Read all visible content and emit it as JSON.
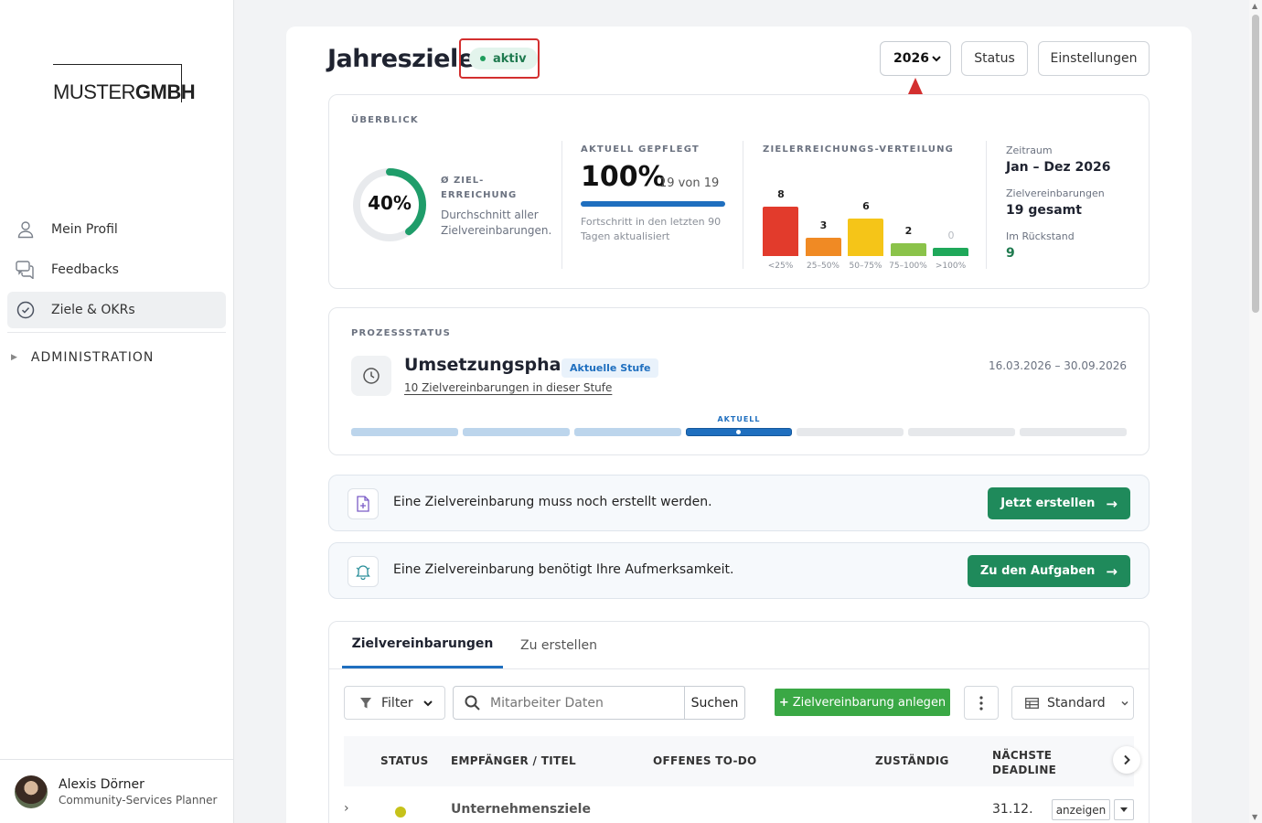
{
  "sidebar": {
    "logo": {
      "light": "MUSTER",
      "bold": "GMBH"
    },
    "items": [
      {
        "label": "Mein Profil",
        "icon": "person-icon"
      },
      {
        "label": "Feedbacks",
        "icon": "chat-icon"
      },
      {
        "label": "Ziele & OKRs",
        "icon": "check-circle-icon",
        "active": true
      }
    ],
    "admin_label": "ADMINISTRATION",
    "user": {
      "name": "Alexis Dörner",
      "role": "Community-Services Planner"
    }
  },
  "header": {
    "title": "Jahresziele",
    "status_badge": "aktiv",
    "year": "2026",
    "status_button": "Status",
    "settings_button": "Einstellungen"
  },
  "overview": {
    "label": "ÜBERBLICK",
    "avg": {
      "value": "40%",
      "fraction": 0.4,
      "label": "Ø ZIEL-ERREICHUNG",
      "desc": "Durchschnitt aller Zielvereinbarungen."
    },
    "maintained": {
      "label": "AKTUELL GEPFLEGT",
      "value": "100%",
      "fraction": 1.0,
      "sub": "19 von 19",
      "note": "Fortschritt in den letzten 90 Tagen aktualisiert"
    },
    "distribution": {
      "label": "ZIELERREICHUNGS-VERTEILUNG",
      "bins": [
        {
          "count": 8,
          "category": "<25%",
          "color": "#e23b2c"
        },
        {
          "count": 3,
          "category": "25–50%",
          "color": "#f08a24"
        },
        {
          "count": 6,
          "category": "50–75%",
          "color": "#f5c518"
        },
        {
          "count": 2,
          "category": "75–100%",
          "color": "#8bc34a"
        },
        {
          "count": 0,
          "category": ">100%",
          "color": "#1fa85a"
        }
      ]
    },
    "meta": [
      {
        "key": "Zeitraum",
        "value": "Jan – Dez 2026"
      },
      {
        "key": "Zielvereinbarungen",
        "value": "19 gesamt"
      },
      {
        "key": "Im Rückstand",
        "value": "9"
      }
    ]
  },
  "process": {
    "label": "PROZESSSTATUS",
    "title": "Umsetzungsphase",
    "badge": "Aktuelle Stufe",
    "link": "10 Zielvereinbarungen in dieser Stufe",
    "dates": "16.03.2026 – 30.09.2026",
    "current_label": "AKTUELL",
    "stages_total": 7,
    "current_stage": 4
  },
  "alerts": [
    {
      "text": "Eine Zielvereinbarung muss noch erstellt werden.",
      "button": "Jetzt erstellen",
      "icon": "file-plus-icon"
    },
    {
      "text": "Eine Zielvereinbarung benötigt Ihre Aufmerksamkeit.",
      "button": "Zu den Aufgaben",
      "icon": "bell-icon"
    }
  ],
  "table": {
    "tabs": [
      "Zielvereinbarungen",
      "Zu erstellen"
    ],
    "filter_label": "Filter",
    "search_placeholder": "Mitarbeiter Daten",
    "search_button": "Suchen",
    "add_button": "Zielvereinbarung anlegen",
    "view_label": "Standard",
    "columns": [
      "STATUS",
      "EMPFÄNGER / TITEL",
      "OFFENES TO-DO",
      "ZUSTÄNDIG",
      "NÄCHSTE DEADLINE"
    ],
    "rows": [
      {
        "title": "Unternehmensziele",
        "deadline": "31.12.",
        "status_color": "#c6c21a",
        "action": "anzeigen"
      }
    ]
  }
}
